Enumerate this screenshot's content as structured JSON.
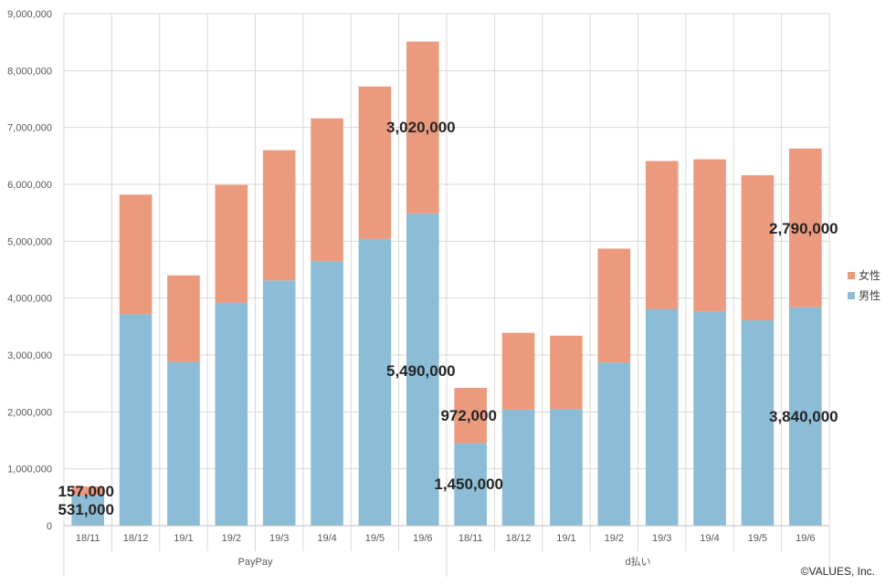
{
  "chart_data": {
    "type": "bar",
    "stacked": true,
    "title": "",
    "xlabel": "",
    "ylabel": "",
    "ylim": [
      0,
      9000000
    ],
    "y_ticks": [
      "0",
      "1,000,000",
      "2,000,000",
      "3,000,000",
      "4,000,000",
      "5,000,000",
      "6,000,000",
      "7,000,000",
      "8,000,000",
      "9,000,000"
    ],
    "grid": true,
    "legend_position": "right",
    "groups": [
      {
        "name": "PayPay",
        "categories": [
          "18/11",
          "18/12",
          "19/1",
          "19/2",
          "19/3",
          "19/4",
          "19/5",
          "19/6"
        ],
        "series": [
          {
            "name": "男性",
            "color": "#8cbcd6",
            "values": [
              531000,
              3720000,
              2880000,
              3920000,
              4310000,
              4650000,
              5040000,
              5490000
            ]
          },
          {
            "name": "女性",
            "color": "#ec9a7e",
            "values": [
              157000,
              2100000,
              1520000,
              2070000,
              2290000,
              2510000,
              2680000,
              3020000
            ]
          }
        ]
      },
      {
        "name": "d払い",
        "categories": [
          "18/11",
          "18/12",
          "19/1",
          "19/2",
          "19/3",
          "19/4",
          "19/5",
          "19/6"
        ],
        "series": [
          {
            "name": "男性",
            "color": "#8cbcd6",
            "values": [
              1450000,
              2040000,
              2050000,
              2870000,
              3810000,
              3760000,
              3610000,
              3840000
            ]
          },
          {
            "name": "女性",
            "color": "#ec9a7e",
            "values": [
              972000,
              1350000,
              1290000,
              2000000,
              2600000,
              2680000,
              2550000,
              2790000
            ]
          }
        ]
      }
    ],
    "data_labels": [
      {
        "group": 0,
        "index": 0,
        "series": "女性",
        "text": "157,000"
      },
      {
        "group": 0,
        "index": 0,
        "series": "男性",
        "text": "531,000"
      },
      {
        "group": 0,
        "index": 7,
        "series": "女性",
        "text": "3,020,000"
      },
      {
        "group": 0,
        "index": 7,
        "series": "男性",
        "text": "5,490,000"
      },
      {
        "group": 1,
        "index": 0,
        "series": "女性",
        "text": "972,000"
      },
      {
        "group": 1,
        "index": 0,
        "series": "男性",
        "text": "1,450,000"
      },
      {
        "group": 1,
        "index": 7,
        "series": "女性",
        "text": "2,790,000"
      },
      {
        "group": 1,
        "index": 7,
        "series": "男性",
        "text": "3,840,000"
      }
    ],
    "legend": [
      {
        "name": "女性",
        "color": "#ec9a7e"
      },
      {
        "name": "男性",
        "color": "#8cbcd6"
      }
    ]
  },
  "copyright": "©VALUES, Inc."
}
